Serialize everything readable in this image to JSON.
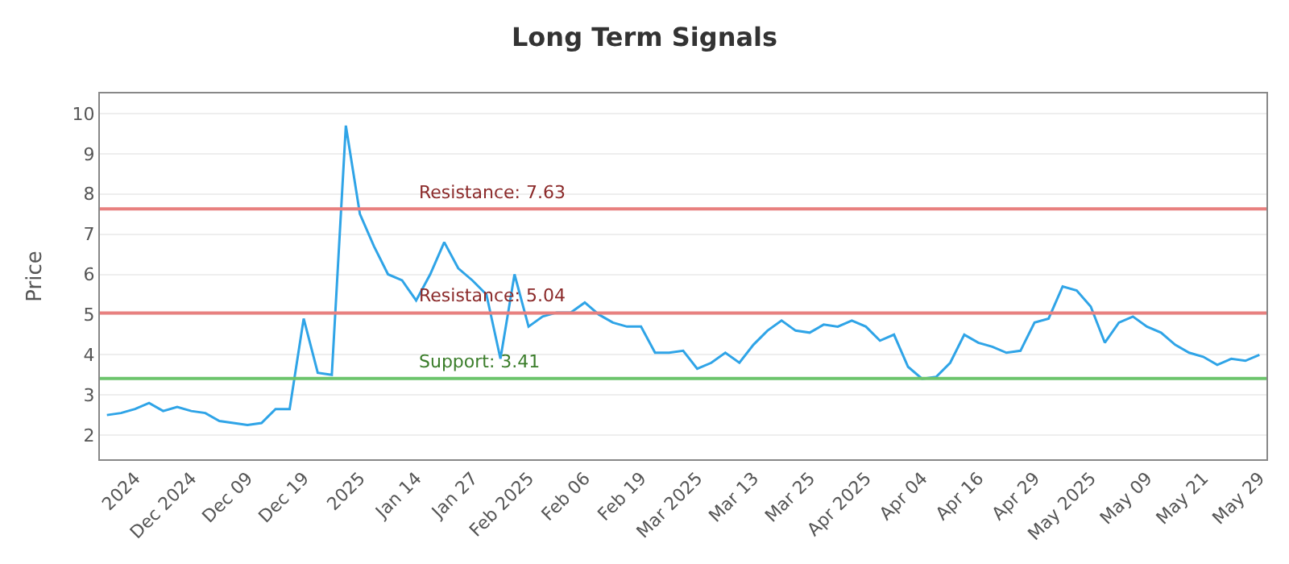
{
  "chart_data": {
    "type": "line",
    "title": "Long Term Signals",
    "ylabel": "Price",
    "categories": [
      null,
      null,
      "2024",
      null,
      null,
      null,
      "Dec 2024",
      null,
      null,
      null,
      "Dec 09",
      null,
      null,
      null,
      "Dec 19",
      null,
      null,
      null,
      "2025",
      null,
      null,
      null,
      "Jan 14",
      null,
      null,
      null,
      "Jan 27",
      null,
      null,
      null,
      "Feb 2025",
      null,
      null,
      null,
      "Feb 06",
      null,
      null,
      null,
      "Feb 19",
      null,
      null,
      null,
      "Mar 2025",
      null,
      null,
      null,
      "Mar 13",
      null,
      null,
      null,
      "Mar 25",
      null,
      null,
      null,
      "Apr 2025",
      null,
      null,
      null,
      "Apr 04",
      null,
      null,
      null,
      "Apr 16",
      null,
      null,
      null,
      "Apr 29",
      null,
      null,
      null,
      "May 2025",
      null,
      null,
      null,
      "May 09",
      null,
      null,
      null,
      "May 21",
      null,
      null,
      null,
      "May 29"
    ],
    "series": [
      {
        "color": "#2fa4e7",
        "values": [
          2.5,
          2.55,
          2.65,
          2.8,
          2.6,
          2.7,
          2.6,
          2.55,
          2.35,
          2.3,
          2.25,
          2.3,
          2.65,
          2.65,
          4.9,
          3.55,
          3.5,
          9.7,
          7.5,
          6.7,
          6.0,
          5.85,
          5.35,
          6.0,
          6.8,
          6.15,
          5.85,
          5.5,
          3.9,
          6.0,
          4.7,
          4.95,
          5.05,
          5.05,
          5.3,
          5.0,
          4.8,
          4.7,
          4.7,
          4.05,
          4.05,
          4.1,
          3.65,
          3.8,
          4.05,
          3.8,
          4.25,
          4.6,
          4.85,
          4.6,
          4.55,
          4.75,
          4.7,
          4.85,
          4.7,
          4.35,
          4.5,
          3.7,
          3.4,
          3.45,
          3.8,
          4.5,
          4.3,
          4.2,
          4.05,
          4.1,
          4.8,
          4.9,
          5.7,
          5.6,
          5.2,
          4.3,
          4.8,
          4.95,
          4.7,
          4.55,
          4.25,
          4.05,
          3.95,
          3.75,
          3.9,
          3.85,
          4.0
        ]
      }
    ],
    "ylim": [
      1.4,
      10.5
    ],
    "yticks": [
      2,
      3,
      4,
      5,
      6,
      7,
      8,
      9,
      10
    ],
    "grid": "y",
    "marker": "none",
    "line_style": "solid",
    "ref_lines": [
      {
        "axis": "y",
        "value": 7.63,
        "label": "Resistance: 7.63",
        "color": "#e8807f"
      },
      {
        "axis": "y",
        "value": 5.04,
        "label": "Resistance: 5.04",
        "color": "#e8807f"
      },
      {
        "axis": "y",
        "value": 3.41,
        "label": "Support: 3.41",
        "color": "#6cc46c"
      }
    ]
  }
}
